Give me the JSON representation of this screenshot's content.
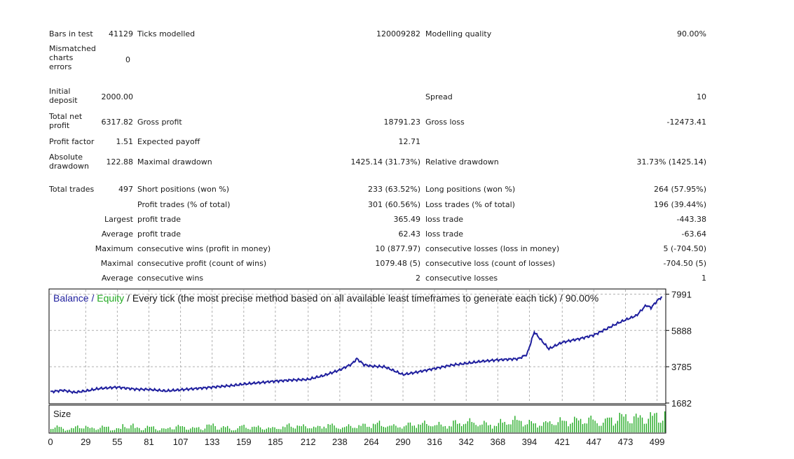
{
  "report": {
    "bars_label": "Bars in test",
    "bars_value": "41129",
    "ticks_label": "Ticks modelled",
    "ticks_value": "120009282",
    "mq_label": "Modelling quality",
    "mq_value": "90.00%",
    "mismatch_label": "Mismatched charts errors",
    "mismatch_value": "0",
    "deposit_label": "Initial deposit",
    "deposit_value": "2000.00",
    "spread_label": "Spread",
    "spread_value": "10",
    "net_label": "Total net profit",
    "net_value": "6317.82",
    "gp_label": "Gross profit",
    "gp_value": "18791.23",
    "gl_label": "Gross loss",
    "gl_value": "-12473.41",
    "pf_label": "Profit factor",
    "pf_value": "1.51",
    "ep_label": "Expected payoff",
    "ep_value": "12.71",
    "abs_label": "Absolute drawdown",
    "abs_value": "122.88",
    "maxdd_label": "Maximal drawdown",
    "maxdd_value": "1425.14 (31.73%)",
    "reldd_label": "Relative drawdown",
    "reldd_value": "31.73% (1425.14)",
    "tt_label": "Total trades",
    "tt_value": "497",
    "sp_label": "Short positions (won %)",
    "sp_value": "233 (63.52%)",
    "lp_label": "Long positions (won %)",
    "lp_value": "264 (57.95%)",
    "pt_label": "Profit trades (% of total)",
    "pt_value": "301 (60.56%)",
    "lt_label": "Loss trades (% of total)",
    "lt_value": "196 (39.44%)",
    "largest_label": "Largest",
    "lpt_label": "profit trade",
    "lpt_value": "365.49",
    "llt_label": "loss trade",
    "llt_value": "-443.38",
    "average_label": "Average",
    "apt_label": "profit trade",
    "apt_value": "62.43",
    "alt_label": "loss trade",
    "alt_value": "-63.64",
    "maximum_label": "Maximum",
    "mcw_label": "consecutive wins (profit in money)",
    "mcw_value": "10 (877.97)",
    "mcl_label": "consecutive losses (loss in money)",
    "mcl_value": "5 (-704.50)",
    "maximal_label": "Maximal",
    "mcp_label": "consecutive profit (count of wins)",
    "mcp_value": "1079.48 (5)",
    "mcloss_label": "consecutive loss (count of losses)",
    "mcloss_value": "-704.50 (5)",
    "average2_label": "Average",
    "acw_label": "consecutive wins",
    "acw_value": "2",
    "acl_label": "consecutive losses",
    "acl_value": "1"
  },
  "chart_data": {
    "type": "line",
    "title_balance": "Balance",
    "title_sep1": " / ",
    "title_equity": "Equity",
    "title_rest": " / Every tick (the most precise method based on all available least timeframes to generate each tick) / 90.00%",
    "size_label": "Size",
    "y_ticks": [
      "7991",
      "5888",
      "3785",
      "1682"
    ],
    "y_tick_values": [
      7991,
      5888,
      3785,
      1682
    ],
    "x_ticks": [
      "0",
      "29",
      "55",
      "81",
      "107",
      "133",
      "159",
      "185",
      "212",
      "238",
      "264",
      "290",
      "316",
      "342",
      "368",
      "394",
      "421",
      "447",
      "473",
      "499"
    ],
    "xlim": [
      0,
      505
    ],
    "ylim": [
      1682,
      8250
    ],
    "colors": {
      "balance": "#1f1f9e",
      "equity": "#22aa22",
      "size": "#22aa22",
      "grid": "#b0b0b0"
    },
    "series": [
      {
        "name": "Balance",
        "points": [
          [
            0,
            2330
          ],
          [
            10,
            2420
          ],
          [
            20,
            2300
          ],
          [
            29,
            2380
          ],
          [
            40,
            2520
          ],
          [
            55,
            2600
          ],
          [
            70,
            2480
          ],
          [
            81,
            2470
          ],
          [
            95,
            2380
          ],
          [
            107,
            2450
          ],
          [
            120,
            2520
          ],
          [
            133,
            2600
          ],
          [
            150,
            2700
          ],
          [
            159,
            2780
          ],
          [
            175,
            2880
          ],
          [
            185,
            2950
          ],
          [
            200,
            3020
          ],
          [
            212,
            3050
          ],
          [
            225,
            3280
          ],
          [
            238,
            3600
          ],
          [
            248,
            3950
          ],
          [
            252,
            4250
          ],
          [
            258,
            3900
          ],
          [
            264,
            3820
          ],
          [
            275,
            3780
          ],
          [
            290,
            3330
          ],
          [
            300,
            3450
          ],
          [
            316,
            3680
          ],
          [
            330,
            3880
          ],
          [
            342,
            3980
          ],
          [
            355,
            4100
          ],
          [
            368,
            4180
          ],
          [
            385,
            4250
          ],
          [
            392,
            4500
          ],
          [
            398,
            5800
          ],
          [
            404,
            5300
          ],
          [
            410,
            4820
          ],
          [
            421,
            5200
          ],
          [
            435,
            5400
          ],
          [
            447,
            5620
          ],
          [
            458,
            6000
          ],
          [
            468,
            6350
          ],
          [
            473,
            6500
          ],
          [
            482,
            6750
          ],
          [
            490,
            7350
          ],
          [
            494,
            7200
          ],
          [
            499,
            7600
          ],
          [
            503,
            7850
          ]
        ]
      }
    ],
    "size_values": [
      0.3,
      0.2,
      0.35,
      0.25,
      0.3,
      0.2,
      0.4,
      0.25,
      0.3,
      0.2,
      0.35,
      0.3,
      0.25,
      0.4,
      0.3,
      0.2,
      0.35,
      0.3,
      0.25,
      0.3,
      0.4,
      0.35,
      0.3,
      0.45,
      0.3,
      0.35,
      0.4,
      0.5,
      0.4,
      0.35,
      0.45,
      0.5,
      0.45,
      0.4,
      0.55,
      0.6,
      0.5,
      0.45,
      0.6,
      0.7,
      0.55,
      0.5,
      0.6,
      0.65,
      0.7,
      0.75,
      0.6,
      0.8,
      0.9,
      0.85,
      0.9,
      1.0
    ]
  }
}
